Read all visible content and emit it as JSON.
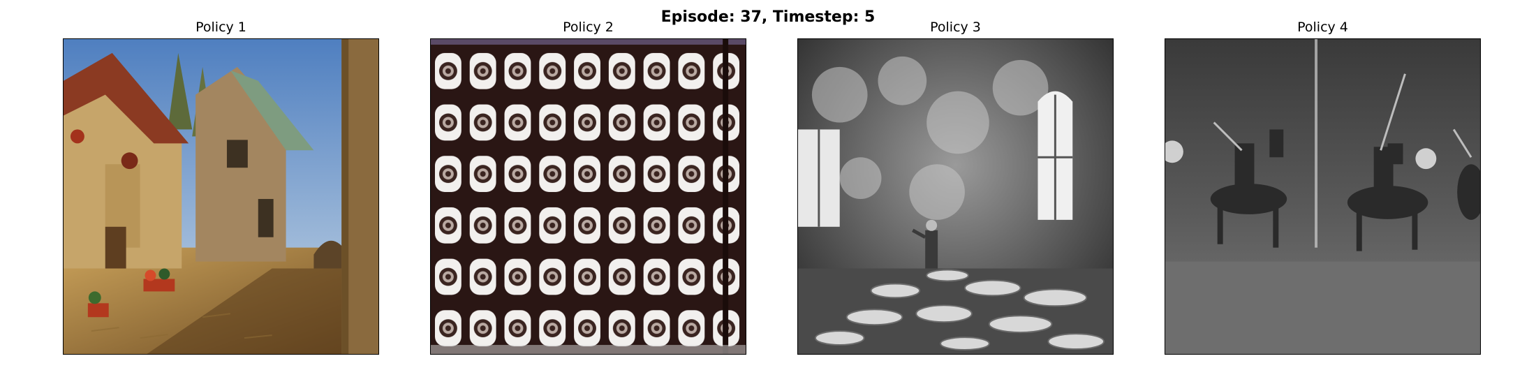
{
  "figure": {
    "title": "Episode: 37, Timestep: 5"
  },
  "panels": [
    {
      "title": "Policy 1",
      "image": "medieval-village-street-painting"
    },
    {
      "title": "Policy 2",
      "image": "grid-of-round-patterned-tiles"
    },
    {
      "title": "Policy 3",
      "image": "grayscale-room-with-foam-and-worker"
    },
    {
      "title": "Policy 4",
      "image": "grayscale-armored-knights-on-horses"
    }
  ]
}
